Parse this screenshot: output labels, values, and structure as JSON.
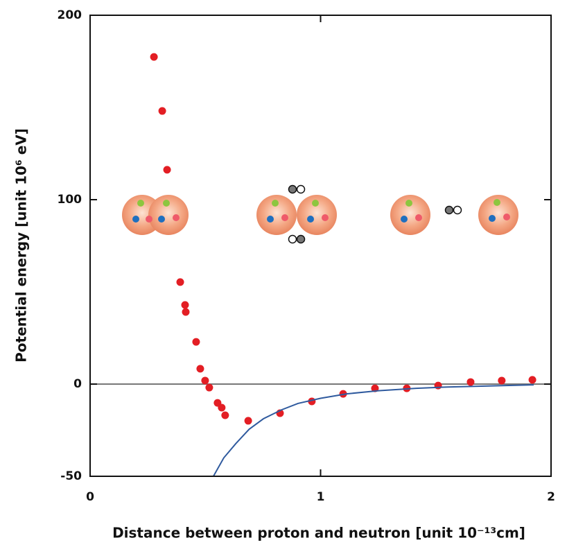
{
  "chart_data": {
    "type": "scatter",
    "xlabel": "Distance between proton and neutron [unit 10⁻¹³cm]",
    "ylabel": "Potential energy [unit 10⁶ eV]",
    "xlim": [
      0,
      2
    ],
    "ylim": [
      -50,
      200
    ],
    "xticks": [
      0,
      1,
      2
    ],
    "yticks": [
      -50,
      0,
      100,
      200
    ],
    "hline": 0,
    "series": [
      {
        "color": "#e31e24",
        "x": [
          0.277,
          0.313,
          0.334,
          0.391,
          0.412,
          0.415,
          0.46,
          0.478,
          0.499,
          0.517,
          0.553,
          0.571,
          0.586,
          0.686,
          0.824,
          0.962,
          1.098,
          1.236,
          1.374,
          1.51,
          1.651,
          1.786,
          1.919
        ],
        "values": [
          177.4,
          148.1,
          116.2,
          55.3,
          42.9,
          39.1,
          22.9,
          8.3,
          1.9,
          -1.9,
          -10.2,
          -12.8,
          -16.9,
          -19.9,
          -15.8,
          -9.4,
          -5.3,
          -2.3,
          -2.3,
          -0.8,
          1.1,
          1.9,
          2.3
        ]
      },
      {
        "color": "#2f5a9e",
        "line": true,
        "x": [
          0.535,
          0.58,
          0.632,
          0.69,
          0.752,
          0.83,
          0.902,
          1.0,
          1.113,
          1.25,
          1.414,
          1.55,
          1.714,
          1.925
        ],
        "values": [
          -50,
          -40,
          -32.3,
          -24.5,
          -18.8,
          -14,
          -10.5,
          -7.7,
          -5.3,
          -3.6,
          -2.3,
          -1.6,
          -1.1,
          -0.4
        ]
      }
    ]
  }
}
